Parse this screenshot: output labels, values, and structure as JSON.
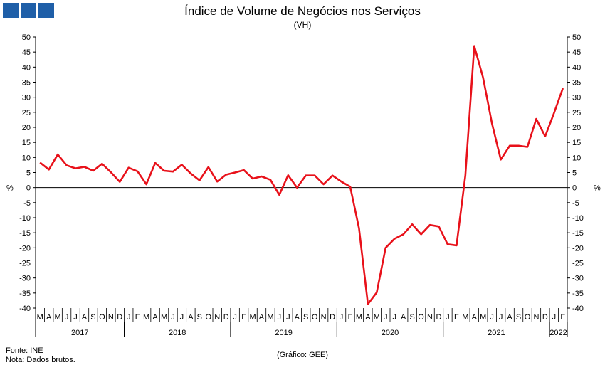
{
  "brand_color": "#1f5fa8",
  "chart_data": {
    "type": "line",
    "title": "Índice de Volume de Negócios nos Serviços",
    "subtitle": "(VH)",
    "ylabel": "%",
    "ylim": [
      -40,
      50
    ],
    "y_ticks": [
      50,
      45,
      40,
      35,
      30,
      25,
      20,
      15,
      10,
      5,
      0,
      -5,
      -10,
      -15,
      -20,
      -25,
      -30,
      -35,
      -40
    ],
    "line_color": "#e8111a",
    "grid": false,
    "month_labels": [
      "M",
      "A",
      "M",
      "J",
      "J",
      "A",
      "S",
      "O",
      "N",
      "D",
      "J",
      "F",
      "M",
      "A",
      "M",
      "J",
      "J",
      "A",
      "S",
      "O",
      "N",
      "D",
      "J",
      "F",
      "M",
      "A",
      "M",
      "J",
      "J",
      "A",
      "S",
      "O",
      "N",
      "D",
      "J",
      "F",
      "M",
      "A",
      "M",
      "J",
      "J",
      "A",
      "S",
      "O",
      "N",
      "D",
      "J",
      "F",
      "M",
      "A",
      "M",
      "J",
      "J",
      "A",
      "S",
      "O",
      "N",
      "D",
      "J",
      "F"
    ],
    "years": [
      {
        "label": "2017",
        "months": 10
      },
      {
        "label": "2018",
        "months": 12
      },
      {
        "label": "2019",
        "months": 12
      },
      {
        "label": "2020",
        "months": 12
      },
      {
        "label": "2021",
        "months": 12
      },
      {
        "label": "2022",
        "months": 2
      }
    ],
    "series": [
      {
        "values": [
          8.3,
          6,
          11,
          7.4,
          6.4,
          6.9,
          5.6,
          7.9,
          5.1,
          1.9,
          6.6,
          5.4,
          1.1,
          8.2,
          5.6,
          5.3,
          7.6,
          4.7,
          2.4,
          6.8,
          2,
          4.3,
          5,
          5.8,
          3,
          3.7,
          2.6,
          -2.4,
          4.1,
          0,
          4,
          4,
          1.1,
          4,
          2,
          0.3,
          -13.5,
          -38.7,
          -34.8,
          -20,
          -17,
          -15.5,
          -12.2,
          -15.5,
          -12.4,
          -12.9,
          -18.8,
          -19.2,
          4,
          47,
          36.5,
          21.3,
          9.3,
          13.9,
          13.9,
          13.5,
          22.8,
          17,
          24.7,
          33
        ]
      }
    ]
  },
  "footer": {
    "source": "Fonte: INE",
    "note": "Nota: Dados brutos.",
    "credit": "(Gráfico: GEE)"
  }
}
